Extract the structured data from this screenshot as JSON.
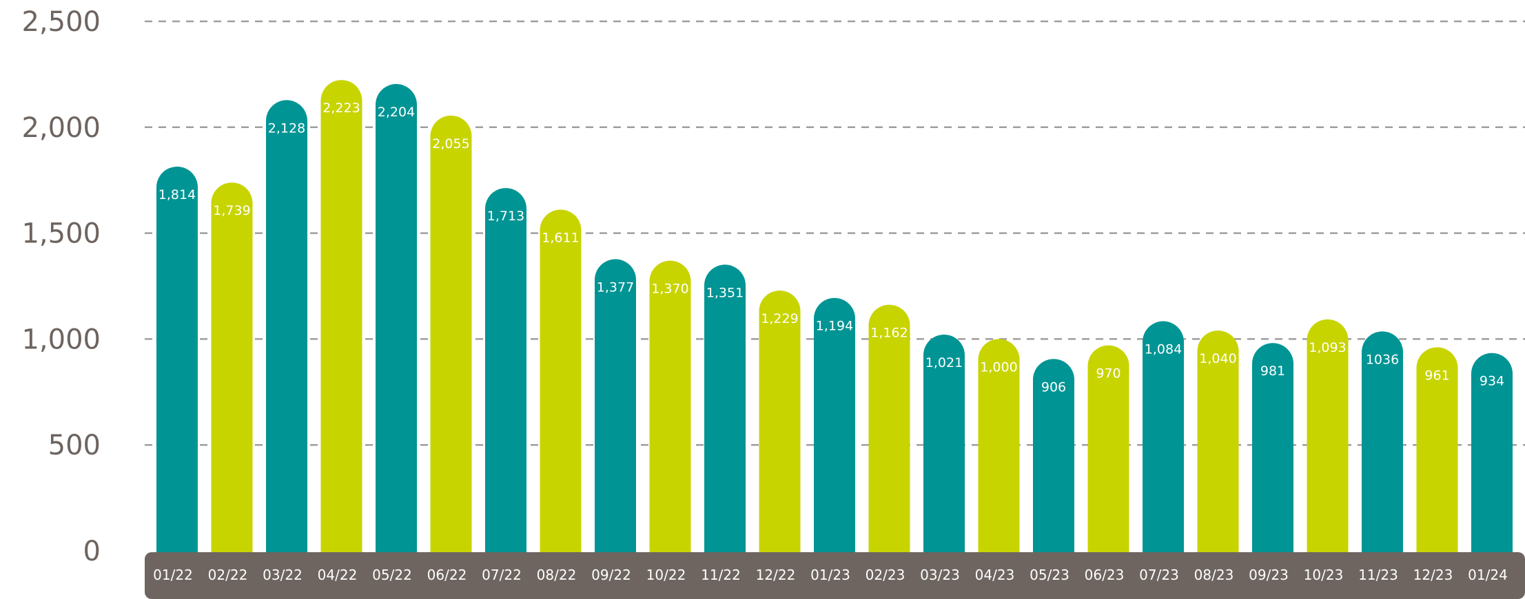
{
  "chart_data": {
    "type": "bar",
    "categories": [
      "01/22",
      "02/22",
      "03/22",
      "04/22",
      "05/22",
      "06/22",
      "07/22",
      "08/22",
      "09/22",
      "10/22",
      "11/22",
      "12/22",
      "01/23",
      "02/23",
      "03/23",
      "04/23",
      "05/23",
      "06/23",
      "07/23",
      "08/23",
      "09/23",
      "10/23",
      "11/23",
      "12/23",
      "01/24"
    ],
    "values": [
      1814,
      1739,
      2128,
      2223,
      2204,
      2055,
      1713,
      1611,
      1377,
      1370,
      1351,
      1229,
      1194,
      1162,
      1021,
      1000,
      906,
      970,
      1084,
      1040,
      981,
      1093,
      1036,
      961,
      934
    ],
    "data_labels": [
      "1,814",
      "1,739",
      "2,128",
      "2,223",
      "2,204",
      "2,055",
      "1,713",
      "1,611",
      "1,377",
      "1,370",
      "1,351",
      "1,229",
      "1,194",
      "1,162",
      "1,021",
      "1,000",
      "906",
      "970",
      "1,084",
      "1,040",
      "981",
      "1,093",
      "1036",
      "961",
      "934"
    ],
    "yticks": [
      0,
      500,
      1000,
      1500,
      2000,
      2500
    ],
    "ytick_labels": [
      "0",
      "500",
      "1,000",
      "1,500",
      "2,000",
      "2,500"
    ],
    "ylim": [
      0,
      2500
    ],
    "grid": true,
    "title": "",
    "xlabel": "",
    "ylabel": "",
    "colors": {
      "teal": "#009494",
      "lime": "#c8d400",
      "axis_band": "#6e6560",
      "tick_text": "#6d645f",
      "grid": "#9e9e9e"
    }
  }
}
